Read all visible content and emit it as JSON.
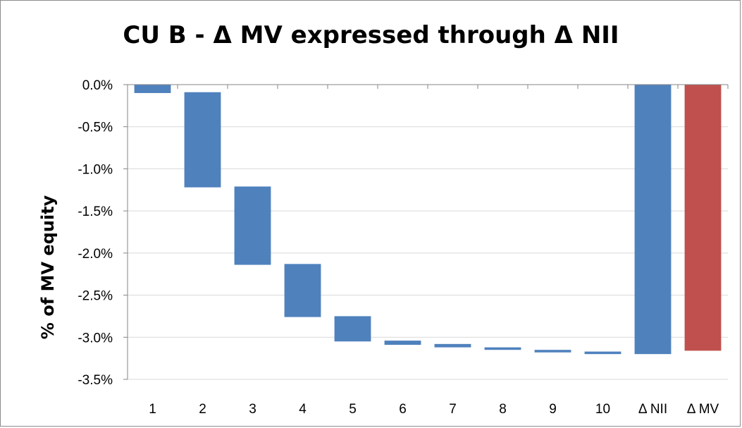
{
  "chart_data": {
    "type": "bar",
    "subtype": "waterfall",
    "title": "CU B - Δ MV expressed through Δ NII",
    "ylabel": "% of MV equity",
    "xlabel": "",
    "ylim": [
      -3.5,
      0.0
    ],
    "yticks": [
      "0.0%",
      "-0.5%",
      "-1.0%",
      "-1.5%",
      "-2.0%",
      "-2.5%",
      "-3.0%",
      "-3.5%"
    ],
    "ytick_values": [
      0.0,
      -0.5,
      -1.0,
      -1.5,
      -2.0,
      -2.5,
      -3.0,
      -3.5
    ],
    "categories": [
      "1",
      "2",
      "3",
      "4",
      "5",
      "6",
      "7",
      "8",
      "9",
      "10",
      "Δ NII",
      "Δ MV"
    ],
    "bars": [
      {
        "category": "1",
        "start": 0.0,
        "end": -0.1,
        "color": "#4f81bd"
      },
      {
        "category": "2",
        "start": -0.09,
        "end": -1.22,
        "color": "#4f81bd"
      },
      {
        "category": "3",
        "start": -1.21,
        "end": -2.14,
        "color": "#4f81bd"
      },
      {
        "category": "4",
        "start": -2.13,
        "end": -2.76,
        "color": "#4f81bd"
      },
      {
        "category": "5",
        "start": -2.75,
        "end": -3.05,
        "color": "#4f81bd"
      },
      {
        "category": "6",
        "start": -3.04,
        "end": -3.09,
        "color": "#4f81bd"
      },
      {
        "category": "7",
        "start": -3.08,
        "end": -3.12,
        "color": "#4f81bd"
      },
      {
        "category": "8",
        "start": -3.12,
        "end": -3.15,
        "color": "#4f81bd"
      },
      {
        "category": "9",
        "start": -3.15,
        "end": -3.18,
        "color": "#4f81bd"
      },
      {
        "category": "10",
        "start": -3.17,
        "end": -3.2,
        "color": "#4f81bd"
      },
      {
        "category": "Δ NII",
        "start": 0.0,
        "end": -3.2,
        "color": "#4f81bd"
      },
      {
        "category": "Δ MV",
        "start": 0.0,
        "end": -3.16,
        "color": "#c0504d"
      }
    ],
    "grid": true,
    "legend": "none",
    "colors": {
      "increment": "#4f81bd",
      "total_nii": "#4f81bd",
      "total_mv": "#c0504d",
      "gridline": "#d9d9d9",
      "axis": "#868686"
    }
  }
}
